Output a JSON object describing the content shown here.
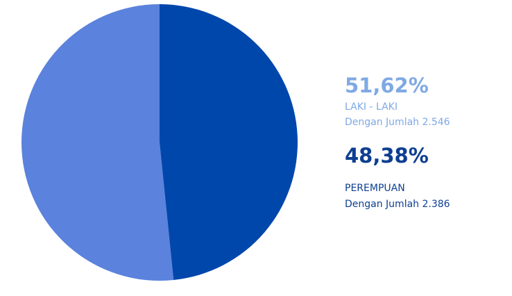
{
  "chart_data": {
    "type": "pie",
    "categories": [
      "LAKI - LAKI",
      "PEREMPUAN"
    ],
    "values": [
      51.62,
      48.38
    ],
    "value_labels": [
      "51,62%",
      "48,38%"
    ],
    "descriptions": [
      "Dengan Jumlah 2.546",
      "Dengan Jumlah 2.386"
    ],
    "colors": [
      "#5b82dc",
      "#0047ab"
    ]
  }
}
